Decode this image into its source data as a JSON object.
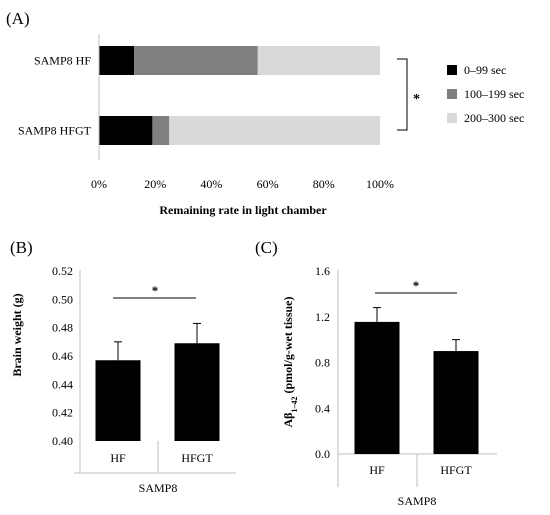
{
  "chart_data": [
    {
      "panel_label": "(A)",
      "type": "bar",
      "orientation": "horizontal",
      "stacked": true,
      "percent": true,
      "categories": [
        "SAMP8 HF",
        "SAMP8 HFGT"
      ],
      "series": [
        {
          "name": "0–99 sec",
          "color": "#000000",
          "values": [
            12.5,
            19
          ]
        },
        {
          "name": "100–199 sec",
          "color": "#7f7f7f",
          "values": [
            44,
            6
          ]
        },
        {
          "name": "200–300 sec",
          "color": "#d9d9d9",
          "values": [
            43.5,
            75
          ]
        }
      ],
      "xlabel": "Remaining rate in light chamber",
      "xticks": [
        "0%",
        "20%",
        "40%",
        "60%",
        "80%",
        "100%"
      ],
      "xlim": [
        0,
        100
      ],
      "legend_position": "right",
      "significance": "*"
    },
    {
      "panel_label": "(B)",
      "type": "bar",
      "categories": [
        "HF",
        "HFGT"
      ],
      "group_label": "SAMP8",
      "values": [
        0.457,
        0.469
      ],
      "errors": [
        0.013,
        0.014
      ],
      "ylabel": "Brain weight (g)",
      "ylim": [
        0.4,
        0.52
      ],
      "yticks": [
        "0.40",
        "0.42",
        "0.44",
        "0.46",
        "0.48",
        "0.50",
        "0.52"
      ],
      "significance": "*"
    },
    {
      "panel_label": "(C)",
      "type": "bar",
      "categories": [
        "HF",
        "HFGT"
      ],
      "group_label": "SAMP8",
      "values": [
        1.155,
        0.9
      ],
      "errors": [
        0.125,
        0.1
      ],
      "ylabel": {
        "prefix": "Aβ",
        "subscript": "1–42",
        "suffix": " (pmol/g-wet tissue)"
      },
      "ylim": [
        0,
        1.6
      ],
      "yticks": [
        "0.0",
        "0.4",
        "0.8",
        "1.2",
        "1.6"
      ],
      "significance": "*"
    }
  ]
}
